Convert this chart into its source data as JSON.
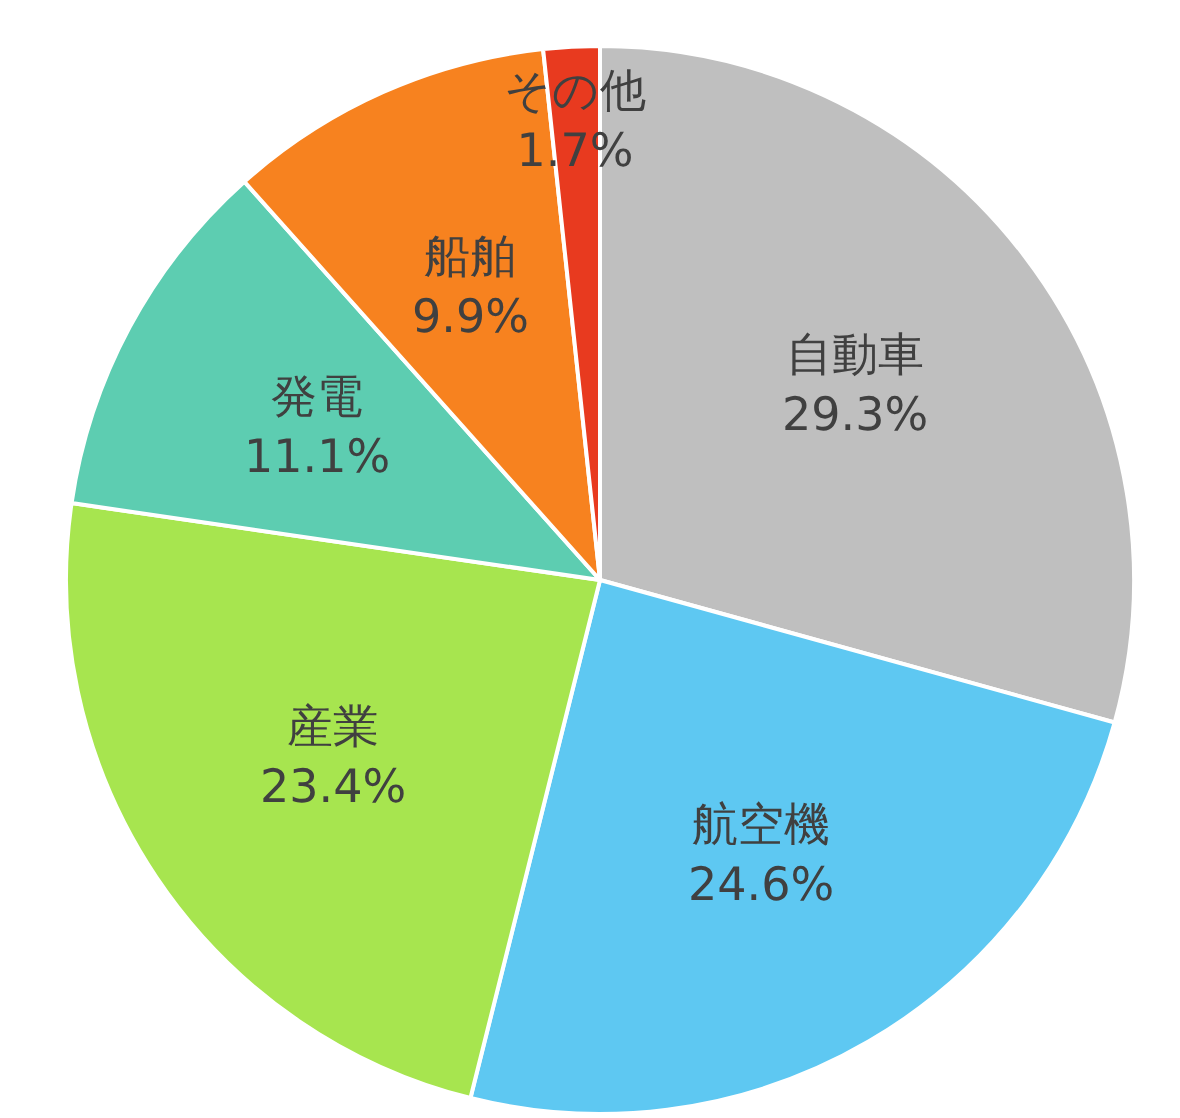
{
  "chart_data": {
    "type": "pie",
    "categories": [
      "自動車",
      "航空機",
      "産業",
      "発電",
      "船舶",
      "その他"
    ],
    "values": [
      29.3,
      24.6,
      23.4,
      11.1,
      9.9,
      1.7
    ],
    "colors": [
      "#bfbfbf",
      "#5ec8f2",
      "#a7e54f",
      "#5dcdb1",
      "#f7821f",
      "#e83a1f"
    ],
    "value_labels": [
      "29.3%",
      "24.6%",
      "23.4%",
      "11.1%",
      "9.9%",
      "1.7%"
    ]
  }
}
